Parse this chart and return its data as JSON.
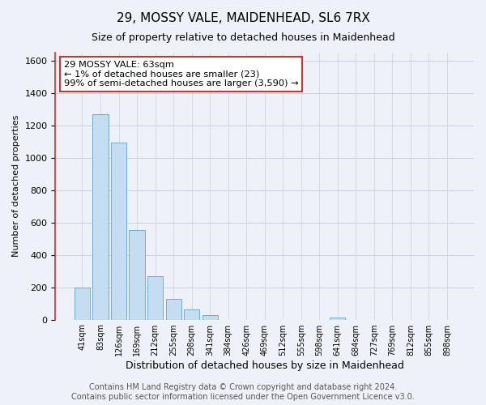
{
  "title": "29, MOSSY VALE, MAIDENHEAD, SL6 7RX",
  "subtitle": "Size of property relative to detached houses in Maidenhead",
  "xlabel": "Distribution of detached houses by size in Maidenhead",
  "ylabel": "Number of detached properties",
  "bar_color": "#c5ddf0",
  "bar_edge_color": "#6baed6",
  "background_color": "#eef2f8",
  "categories": [
    "41sqm",
    "83sqm",
    "126sqm",
    "169sqm",
    "212sqm",
    "255sqm",
    "298sqm",
    "341sqm",
    "384sqm",
    "426sqm",
    "469sqm",
    "512sqm",
    "555sqm",
    "598sqm",
    "641sqm",
    "684sqm",
    "727sqm",
    "769sqm",
    "812sqm",
    "855sqm",
    "898sqm"
  ],
  "values": [
    200,
    1270,
    1095,
    555,
    270,
    128,
    62,
    30,
    0,
    0,
    0,
    0,
    0,
    0,
    15,
    0,
    0,
    0,
    0,
    0,
    0
  ],
  "ylim": [
    0,
    1650
  ],
  "yticks": [
    0,
    200,
    400,
    600,
    800,
    1000,
    1200,
    1400,
    1600
  ],
  "annotation_title": "29 MOSSY VALE: 63sqm",
  "annotation_line1": "← 1% of detached houses are smaller (23)",
  "annotation_line2": "99% of semi-detached houses are larger (3,590) →",
  "footer_line1": "Contains HM Land Registry data © Crown copyright and database right 2024.",
  "footer_line2": "Contains public sector information licensed under the Open Government Licence v3.0.",
  "grid_color": "#c8d0dc",
  "title_fontsize": 11,
  "subtitle_fontsize": 9,
  "xlabel_fontsize": 9,
  "ylabel_fontsize": 8,
  "footer_fontsize": 7
}
